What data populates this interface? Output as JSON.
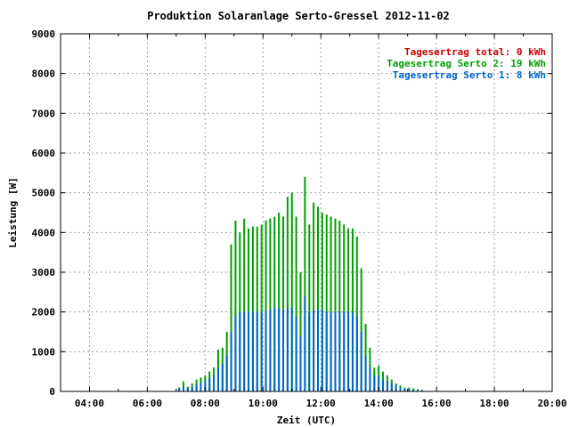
{
  "chart_data": {
    "type": "bar",
    "title": "Produktion Solaranlage Serto-Gressel 2012-11-02",
    "xlabel": "Zeit (UTC)",
    "ylabel": "Leistung [W]",
    "xlim": [
      3.0,
      20.0
    ],
    "ylim": [
      0,
      9000
    ],
    "x_ticks": [
      "04:00",
      "06:00",
      "08:00",
      "10:00",
      "12:00",
      "14:00",
      "16:00",
      "18:00",
      "20:00"
    ],
    "y_ticks": [
      "0",
      "1000",
      "2000",
      "3000",
      "4000",
      "5000",
      "6000",
      "7000",
      "8000",
      "9000"
    ],
    "grid": true,
    "legend_position": "top-right",
    "legend": [
      {
        "label": "Tagesertrag total: 0 kWh",
        "color": "#cc0000"
      },
      {
        "label": "Tagesertrag Serto 2: 19 kWh",
        "color": "#00a000"
      },
      {
        "label": "Tagesertrag Serto 1: 8 kWh",
        "color": "#0066cc"
      }
    ],
    "series": [
      {
        "color": "#00a000",
        "x": [
          7.1,
          7.25,
          7.4,
          7.55,
          7.7,
          7.85,
          8.0,
          8.15,
          8.3,
          8.45,
          8.6,
          8.75,
          8.9,
          9.05,
          9.2,
          9.35,
          9.5,
          9.65,
          9.8,
          9.95,
          10.1,
          10.25,
          10.4,
          10.55,
          10.7,
          10.85,
          11.0,
          11.15,
          11.3,
          11.45,
          11.6,
          11.75,
          11.9,
          12.05,
          12.2,
          12.35,
          12.5,
          12.65,
          12.8,
          12.95,
          13.1,
          13.25,
          13.4,
          13.55,
          13.7,
          13.85,
          14.0,
          14.15,
          14.3,
          14.45,
          14.6,
          14.75,
          14.9,
          15.05,
          15.2,
          15.35,
          15.5
        ],
        "values": [
          100,
          250,
          120,
          200,
          300,
          350,
          400,
          500,
          600,
          1050,
          1100,
          1500,
          3700,
          4300,
          4000,
          4350,
          4100,
          4150,
          4150,
          4200,
          4300,
          4350,
          4400,
          4500,
          4400,
          4900,
          5000,
          4400,
          3000,
          5400,
          4200,
          4750,
          4650,
          4500,
          4450,
          4400,
          4350,
          4300,
          4200,
          4100,
          4100,
          3900,
          3100,
          1700,
          1100,
          600,
          650,
          500,
          400,
          300,
          200,
          150,
          100,
          100,
          80,
          60,
          40
        ]
      },
      {
        "color": "#0066cc",
        "x": [
          7.1,
          7.25,
          7.4,
          7.55,
          7.7,
          7.85,
          8.0,
          8.15,
          8.3,
          8.45,
          8.6,
          8.75,
          8.9,
          9.05,
          9.2,
          9.35,
          9.5,
          9.65,
          9.8,
          9.95,
          10.1,
          10.25,
          10.4,
          10.55,
          10.7,
          10.85,
          11.0,
          11.15,
          11.3,
          11.45,
          11.6,
          11.75,
          11.9,
          12.05,
          12.2,
          12.35,
          12.5,
          12.65,
          12.8,
          12.95,
          13.1,
          13.25,
          13.4,
          13.55,
          13.7,
          13.85,
          14.0,
          14.15,
          14.3,
          14.45,
          14.6,
          14.75,
          14.9,
          15.05,
          15.2,
          15.35,
          15.5
        ],
        "values": [
          60,
          120,
          80,
          120,
          180,
          220,
          260,
          340,
          420,
          600,
          700,
          900,
          1500,
          1900,
          2000,
          2000,
          2000,
          2000,
          2000,
          2000,
          2050,
          2050,
          2100,
          2100,
          2050,
          2100,
          2100,
          1900,
          1400,
          2400,
          2000,
          2050,
          2050,
          2050,
          2000,
          2000,
          2000,
          2000,
          2000,
          2000,
          2000,
          1900,
          1500,
          900,
          600,
          400,
          400,
          300,
          250,
          200,
          150,
          100,
          80,
          60,
          50,
          40,
          30
        ]
      }
    ]
  }
}
